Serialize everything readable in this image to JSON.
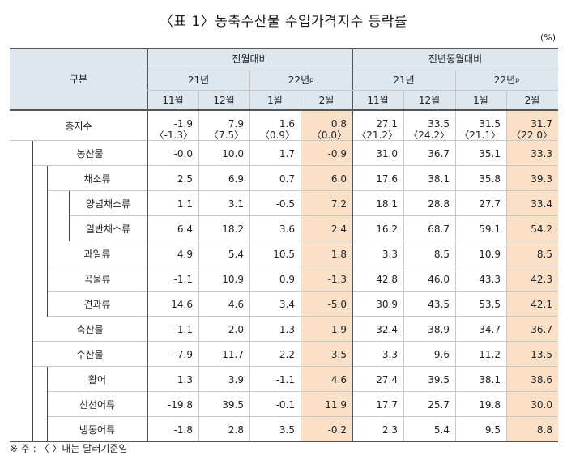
{
  "title": "〈표 1〉농축수산물 수입가격지수 등락률",
  "unit": "(%)",
  "note": "※ 주 : 〈 〉내는 달러기준임",
  "header": {
    "category": "구분",
    "group_mom": "전월대비",
    "group_yoy": "전년동월대비",
    "year21": "21년",
    "year22": "22년",
    "year22_sup": "p",
    "months": [
      "11월",
      "12월",
      "1월",
      "2월",
      "11월",
      "12월",
      "1월",
      "2월"
    ]
  },
  "rows": [
    {
      "label": "총지수",
      "values": [
        {
          "main": "-1.9",
          "sub": "〈-1.3〉"
        },
        {
          "main": "7.9",
          "sub": "〈7.5〉"
        },
        {
          "main": "1.6",
          "sub": "〈0.9〉"
        },
        {
          "main": "0.8",
          "sub": "〈0.0〉"
        },
        {
          "main": "27.1",
          "sub": "〈21.2〉"
        },
        {
          "main": "33.5",
          "sub": "〈24.2〉"
        },
        {
          "main": "31.5",
          "sub": "〈21.1〉"
        },
        {
          "main": "31.7",
          "sub": "〈22.0〉"
        }
      ]
    },
    {
      "label": "농산물",
      "values": [
        "-0.0",
        "10.0",
        "1.7",
        "-0.9",
        "31.0",
        "36.7",
        "35.1",
        "33.3"
      ]
    },
    {
      "label": "채소류",
      "values": [
        "2.5",
        "6.9",
        "0.7",
        "6.0",
        "17.6",
        "38.1",
        "35.8",
        "39.3"
      ]
    },
    {
      "label": "양념채소류",
      "values": [
        "1.1",
        "3.1",
        "-0.5",
        "7.2",
        "18.1",
        "28.8",
        "27.7",
        "33.4"
      ]
    },
    {
      "label": "일반채소류",
      "values": [
        "6.4",
        "18.2",
        "3.6",
        "2.4",
        "16.2",
        "68.7",
        "59.1",
        "54.2"
      ]
    },
    {
      "label": "과일류",
      "values": [
        "4.9",
        "5.4",
        "10.5",
        "1.8",
        "3.3",
        "8.5",
        "10.9",
        "8.5"
      ]
    },
    {
      "label": "곡물류",
      "values": [
        "-1.1",
        "10.9",
        "0.9",
        "-1.3",
        "42.8",
        "46.0",
        "43.3",
        "42.3"
      ]
    },
    {
      "label": "견과류",
      "values": [
        "14.6",
        "4.6",
        "3.4",
        "-5.0",
        "30.9",
        "43.5",
        "53.5",
        "42.1"
      ]
    },
    {
      "label": "축산물",
      "values": [
        "-1.1",
        "2.0",
        "1.3",
        "1.9",
        "32.4",
        "38.9",
        "34.7",
        "36.7"
      ]
    },
    {
      "label": "수산물",
      "values": [
        "-7.9",
        "11.7",
        "2.2",
        "3.5",
        "3.3",
        "9.6",
        "11.2",
        "13.5"
      ]
    },
    {
      "label": "활어",
      "values": [
        "1.3",
        "3.9",
        "-1.1",
        "4.6",
        "27.4",
        "39.5",
        "38.1",
        "38.6"
      ]
    },
    {
      "label": "신선어류",
      "values": [
        "-19.8",
        "39.5",
        "-0.1",
        "11.9",
        "17.7",
        "25.7",
        "19.8",
        "30.0"
      ]
    },
    {
      "label": "냉동어류",
      "values": [
        "-1.8",
        "2.8",
        "3.5",
        "-0.2",
        "2.3",
        "5.4",
        "9.5",
        "8.8"
      ]
    }
  ],
  "colors": {
    "header_bg": "#dde7f0",
    "highlight": "#fbe0c8",
    "border": "#c8c8c8"
  }
}
